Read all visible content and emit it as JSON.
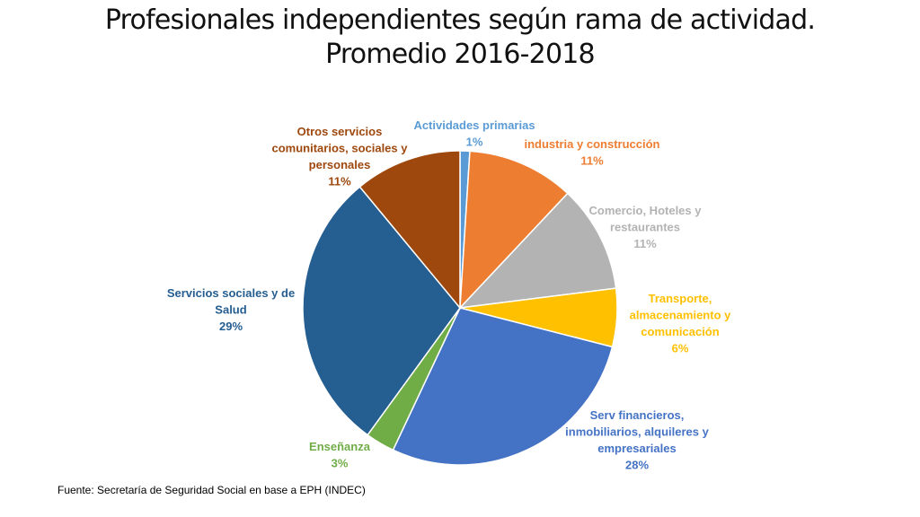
{
  "title_lines": [
    "Profesionales independientes según rama de actividad.",
    "Promedio 2016-2018"
  ],
  "source": "Fuente: Secretaría de Seguridad Social en base a EPH (INDEC)",
  "chart_data": {
    "type": "pie",
    "title": "Profesionales independientes según rama de actividad. Promedio 2016-2018",
    "slices": [
      {
        "label": [
          "Actividades  primarias"
        ],
        "value": 1,
        "value_label": "1%",
        "color": "#5B9BD5"
      },
      {
        "label": [
          "industria y construcción"
        ],
        "value": 11,
        "value_label": "11%",
        "color": "#ED7D31"
      },
      {
        "label": [
          "Comercio, Hoteles y",
          "restaurantes"
        ],
        "value": 11,
        "value_label": "11%",
        "color": "#B3B3B3"
      },
      {
        "label": [
          "Transporte,",
          "almacenamiento y",
          "comunicación"
        ],
        "value": 6,
        "value_label": "6%",
        "color": "#FFC000"
      },
      {
        "label": [
          "Serv financieros,",
          "inmobiliarios, alquileres y",
          "empresariales"
        ],
        "value": 28,
        "value_label": "28%",
        "color": "#4472C4"
      },
      {
        "label": [
          "Enseñanza"
        ],
        "value": 3,
        "value_label": "3%",
        "color": "#70AD47"
      },
      {
        "label": [
          "Servicios sociales y de",
          "Salud"
        ],
        "value": 29,
        "value_label": "29%",
        "color": "#255E91"
      },
      {
        "label": [
          "Otros servicios",
          "comunitarios, sociales y",
          "personales"
        ],
        "value": 11,
        "value_label": "11%",
        "color": "#9E480E"
      }
    ]
  }
}
